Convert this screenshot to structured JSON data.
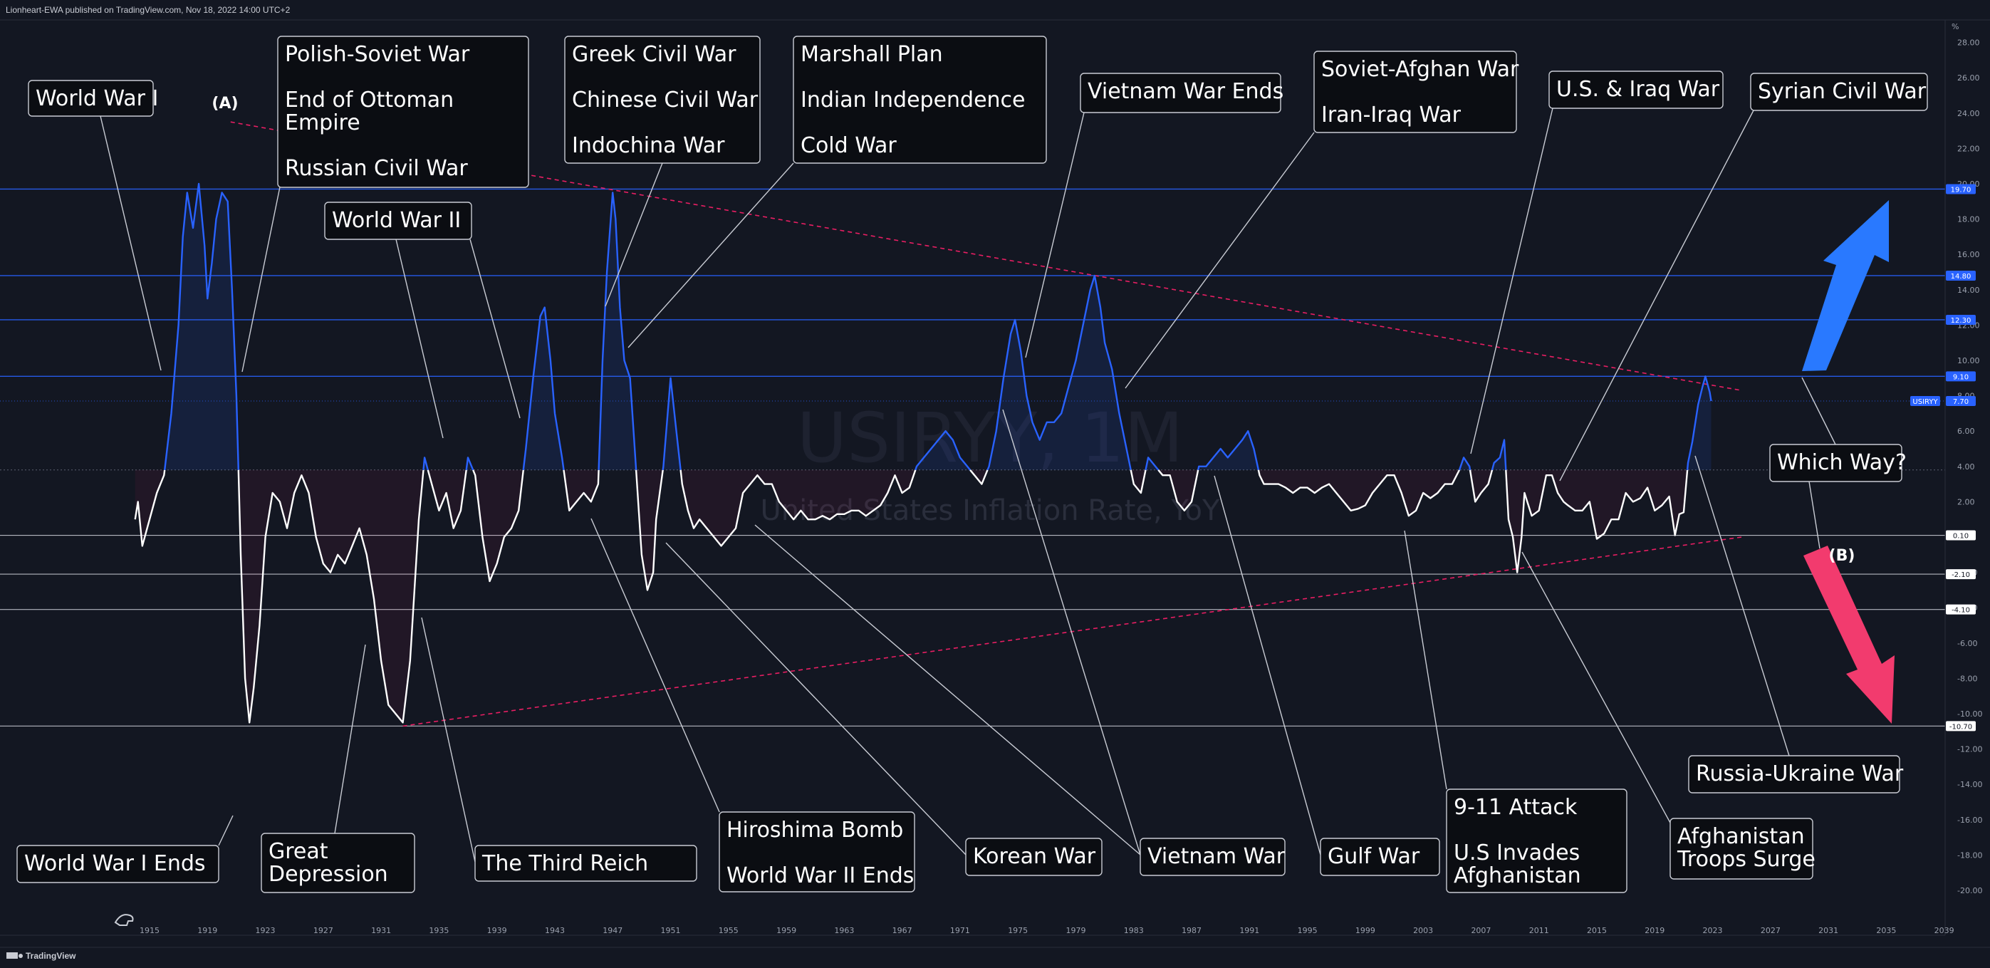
{
  "header": {
    "publisher": "Lionheart-EWA published on TradingView.com, Nov 18, 2022 14:00 UTC+2",
    "footer_brand": "TradingView"
  },
  "watermark": {
    "symbol": "USIRYY, 1M",
    "description": "United States Inflation Rate, YoY"
  },
  "colors": {
    "background": "#131722",
    "line_positive": "#2962ff",
    "line_white": "#ffffff",
    "trendline": "#e91e63",
    "arrow_up": "#2979ff",
    "arrow_down": "#f23b6e"
  },
  "chart_data": {
    "type": "line",
    "title": "USIRYY, 1M",
    "subtitle": "United States Inflation Rate, YoY",
    "y_unit": "%",
    "x_ticks": [
      "1915",
      "1919",
      "1923",
      "1927",
      "1931",
      "1935",
      "1939",
      "1943",
      "1947",
      "1951",
      "1955",
      "1959",
      "1963",
      "1967",
      "1971",
      "1975",
      "1979",
      "1983",
      "1987",
      "1991",
      "1995",
      "1999",
      "2003",
      "2007",
      "2011",
      "2015",
      "2019",
      "2023",
      "2027",
      "2031",
      "2035",
      "2039"
    ],
    "y_ticks": [
      "28.00",
      "26.00",
      "24.00",
      "22.00",
      "20.00",
      "18.00",
      "16.00",
      "14.00",
      "12.00",
      "10.00",
      "8.00",
      "6.00",
      "4.00",
      "2.00",
      "0.00",
      "-2.00",
      "-4.00",
      "-6.00",
      "-8.00",
      "-10.00",
      "-12.00",
      "-14.00",
      "-16.00",
      "-18.00",
      "-20.00"
    ],
    "xlim": [
      1912.7,
      2039.5
    ],
    "ylim": [
      -20,
      28
    ],
    "threshold": 3.8,
    "series": [
      {
        "values": [
          [
            1914.0,
            1.0
          ],
          [
            1914.2,
            2.0
          ],
          [
            1914.5,
            -0.5
          ],
          [
            1915.0,
            1.0
          ],
          [
            1915.5,
            2.5
          ],
          [
            1916.0,
            3.5
          ],
          [
            1916.5,
            7.0
          ],
          [
            1917.0,
            12.0
          ],
          [
            1917.3,
            17.0
          ],
          [
            1917.6,
            19.5
          ],
          [
            1918.0,
            17.5
          ],
          [
            1918.4,
            20.0
          ],
          [
            1918.8,
            16.5
          ],
          [
            1919.0,
            13.5
          ],
          [
            1919.3,
            15.5
          ],
          [
            1919.6,
            18.0
          ],
          [
            1920.0,
            19.5
          ],
          [
            1920.4,
            19.0
          ],
          [
            1920.7,
            14.0
          ],
          [
            1921.0,
            8.0
          ],
          [
            1921.3,
            -1.0
          ],
          [
            1921.6,
            -8.0
          ],
          [
            1921.9,
            -10.5
          ],
          [
            1922.2,
            -8.5
          ],
          [
            1922.6,
            -5.0
          ],
          [
            1923.0,
            0.0
          ],
          [
            1923.5,
            2.5
          ],
          [
            1924.0,
            2.0
          ],
          [
            1924.5,
            0.5
          ],
          [
            1925.0,
            2.5
          ],
          [
            1925.5,
            3.5
          ],
          [
            1926.0,
            2.5
          ],
          [
            1926.5,
            0.0
          ],
          [
            1927.0,
            -1.5
          ],
          [
            1927.5,
            -2.0
          ],
          [
            1928.0,
            -1.0
          ],
          [
            1928.5,
            -1.5
          ],
          [
            1929.0,
            -0.5
          ],
          [
            1929.5,
            0.5
          ],
          [
            1930.0,
            -1.0
          ],
          [
            1930.5,
            -3.5
          ],
          [
            1931.0,
            -7.0
          ],
          [
            1931.5,
            -9.5
          ],
          [
            1932.0,
            -10.0
          ],
          [
            1932.5,
            -10.5
          ],
          [
            1933.0,
            -7.0
          ],
          [
            1933.3,
            -3.0
          ],
          [
            1933.6,
            1.0
          ],
          [
            1934.0,
            4.5
          ],
          [
            1934.5,
            3.0
          ],
          [
            1935.0,
            1.5
          ],
          [
            1935.5,
            2.5
          ],
          [
            1936.0,
            0.5
          ],
          [
            1936.5,
            1.5
          ],
          [
            1937.0,
            4.5
          ],
          [
            1937.5,
            3.5
          ],
          [
            1938.0,
            0.0
          ],
          [
            1938.5,
            -2.5
          ],
          [
            1939.0,
            -1.5
          ],
          [
            1939.5,
            0.0
          ],
          [
            1940.0,
            0.5
          ],
          [
            1940.5,
            1.5
          ],
          [
            1941.0,
            5.0
          ],
          [
            1941.5,
            9.0
          ],
          [
            1942.0,
            12.5
          ],
          [
            1942.3,
            13.0
          ],
          [
            1942.7,
            10.0
          ],
          [
            1943.0,
            7.0
          ],
          [
            1943.5,
            4.5
          ],
          [
            1944.0,
            1.5
          ],
          [
            1944.5,
            2.0
          ],
          [
            1945.0,
            2.5
          ],
          [
            1945.5,
            2.0
          ],
          [
            1946.0,
            3.0
          ],
          [
            1946.3,
            10.0
          ],
          [
            1946.6,
            15.0
          ],
          [
            1947.0,
            19.5
          ],
          [
            1947.2,
            18.0
          ],
          [
            1947.5,
            13.0
          ],
          [
            1947.8,
            10.0
          ],
          [
            1948.2,
            9.0
          ],
          [
            1948.6,
            4.0
          ],
          [
            1949.0,
            -1.0
          ],
          [
            1949.4,
            -3.0
          ],
          [
            1949.8,
            -2.0
          ],
          [
            1950.0,
            1.0
          ],
          [
            1950.5,
            4.0
          ],
          [
            1951.0,
            9.0
          ],
          [
            1951.4,
            6.0
          ],
          [
            1951.8,
            3.0
          ],
          [
            1952.2,
            1.5
          ],
          [
            1952.6,
            0.5
          ],
          [
            1953.0,
            1.0
          ],
          [
            1953.5,
            0.5
          ],
          [
            1954.0,
            0.0
          ],
          [
            1954.5,
            -0.5
          ],
          [
            1955.0,
            0.0
          ],
          [
            1955.5,
            0.5
          ],
          [
            1956.0,
            2.5
          ],
          [
            1956.5,
            3.0
          ],
          [
            1957.0,
            3.5
          ],
          [
            1957.5,
            3.0
          ],
          [
            1958.0,
            3.0
          ],
          [
            1958.5,
            2.0
          ],
          [
            1959.0,
            1.5
          ],
          [
            1959.5,
            1.0
          ],
          [
            1960.0,
            1.5
          ],
          [
            1960.5,
            1.0
          ],
          [
            1961.0,
            1.0
          ],
          [
            1961.5,
            1.2
          ],
          [
            1962.0,
            1.0
          ],
          [
            1962.5,
            1.3
          ],
          [
            1963.0,
            1.3
          ],
          [
            1963.5,
            1.5
          ],
          [
            1964.0,
            1.5
          ],
          [
            1964.5,
            1.2
          ],
          [
            1965.0,
            1.5
          ],
          [
            1965.5,
            1.8
          ],
          [
            1966.0,
            2.5
          ],
          [
            1966.5,
            3.5
          ],
          [
            1967.0,
            2.5
          ],
          [
            1967.5,
            2.8
          ],
          [
            1968.0,
            4.0
          ],
          [
            1968.5,
            4.5
          ],
          [
            1969.0,
            5.0
          ],
          [
            1969.5,
            5.5
          ],
          [
            1970.0,
            6.0
          ],
          [
            1970.5,
            5.5
          ],
          [
            1971.0,
            4.5
          ],
          [
            1971.5,
            4.0
          ],
          [
            1972.0,
            3.5
          ],
          [
            1972.5,
            3.0
          ],
          [
            1973.0,
            4.0
          ],
          [
            1973.5,
            6.0
          ],
          [
            1974.0,
            9.0
          ],
          [
            1974.5,
            11.5
          ],
          [
            1974.8,
            12.3
          ],
          [
            1975.2,
            10.5
          ],
          [
            1975.6,
            8.0
          ],
          [
            1976.0,
            6.5
          ],
          [
            1976.5,
            5.5
          ],
          [
            1977.0,
            6.5
          ],
          [
            1977.5,
            6.5
          ],
          [
            1978.0,
            7.0
          ],
          [
            1978.5,
            8.5
          ],
          [
            1979.0,
            10.0
          ],
          [
            1979.5,
            12.0
          ],
          [
            1980.0,
            14.0
          ],
          [
            1980.3,
            14.8
          ],
          [
            1980.7,
            13.0
          ],
          [
            1981.0,
            11.0
          ],
          [
            1981.5,
            9.5
          ],
          [
            1982.0,
            7.0
          ],
          [
            1982.5,
            5.0
          ],
          [
            1983.0,
            3.0
          ],
          [
            1983.5,
            2.5
          ],
          [
            1984.0,
            4.5
          ],
          [
            1984.5,
            4.0
          ],
          [
            1985.0,
            3.5
          ],
          [
            1985.5,
            3.5
          ],
          [
            1986.0,
            2.0
          ],
          [
            1986.5,
            1.5
          ],
          [
            1987.0,
            2.0
          ],
          [
            1987.5,
            4.0
          ],
          [
            1988.0,
            4.0
          ],
          [
            1988.5,
            4.5
          ],
          [
            1989.0,
            5.0
          ],
          [
            1989.5,
            4.5
          ],
          [
            1990.0,
            5.0
          ],
          [
            1990.5,
            5.5
          ],
          [
            1990.9,
            6.0
          ],
          [
            1991.3,
            5.0
          ],
          [
            1991.7,
            3.5
          ],
          [
            1992.0,
            3.0
          ],
          [
            1992.5,
            3.0
          ],
          [
            1993.0,
            3.0
          ],
          [
            1993.5,
            2.8
          ],
          [
            1994.0,
            2.5
          ],
          [
            1994.5,
            2.8
          ],
          [
            1995.0,
            2.8
          ],
          [
            1995.5,
            2.5
          ],
          [
            1996.0,
            2.8
          ],
          [
            1996.5,
            3.0
          ],
          [
            1997.0,
            2.5
          ],
          [
            1997.5,
            2.0
          ],
          [
            1998.0,
            1.5
          ],
          [
            1998.5,
            1.6
          ],
          [
            1999.0,
            1.8
          ],
          [
            1999.5,
            2.5
          ],
          [
            2000.0,
            3.0
          ],
          [
            2000.5,
            3.5
          ],
          [
            2001.0,
            3.5
          ],
          [
            2001.5,
            2.5
          ],
          [
            2002.0,
            1.2
          ],
          [
            2002.5,
            1.5
          ],
          [
            2003.0,
            2.5
          ],
          [
            2003.5,
            2.2
          ],
          [
            2004.0,
            2.5
          ],
          [
            2004.5,
            3.0
          ],
          [
            2005.0,
            3.0
          ],
          [
            2005.5,
            3.8
          ],
          [
            2005.8,
            4.5
          ],
          [
            2006.2,
            4.0
          ],
          [
            2006.6,
            2.0
          ],
          [
            2007.0,
            2.5
          ],
          [
            2007.5,
            3.0
          ],
          [
            2007.9,
            4.2
          ],
          [
            2008.3,
            4.5
          ],
          [
            2008.6,
            5.5
          ],
          [
            2008.9,
            1.0
          ],
          [
            2009.2,
            0.0
          ],
          [
            2009.5,
            -2.0
          ],
          [
            2009.8,
            0.0
          ],
          [
            2010.0,
            2.5
          ],
          [
            2010.5,
            1.2
          ],
          [
            2011.0,
            1.5
          ],
          [
            2011.5,
            3.5
          ],
          [
            2011.9,
            3.5
          ],
          [
            2012.3,
            2.5
          ],
          [
            2012.7,
            2.0
          ],
          [
            2013.0,
            1.8
          ],
          [
            2013.5,
            1.5
          ],
          [
            2014.0,
            1.5
          ],
          [
            2014.5,
            2.0
          ],
          [
            2015.0,
            -0.1
          ],
          [
            2015.5,
            0.2
          ],
          [
            2016.0,
            1.0
          ],
          [
            2016.5,
            1.0
          ],
          [
            2017.0,
            2.5
          ],
          [
            2017.5,
            2.0
          ],
          [
            2018.0,
            2.2
          ],
          [
            2018.5,
            2.8
          ],
          [
            2019.0,
            1.5
          ],
          [
            2019.5,
            1.8
          ],
          [
            2020.0,
            2.3
          ],
          [
            2020.4,
            0.1
          ],
          [
            2020.7,
            1.3
          ],
          [
            2021.0,
            1.4
          ],
          [
            2021.3,
            4.2
          ],
          [
            2021.6,
            5.4
          ],
          [
            2022.0,
            7.5
          ],
          [
            2022.3,
            8.5
          ],
          [
            2022.5,
            9.1
          ],
          [
            2022.8,
            8.2
          ],
          [
            2022.9,
            7.7
          ]
        ]
      }
    ],
    "levels": [
      {
        "label": "19.70",
        "style": "blue"
      },
      {
        "label": "14.80",
        "style": "blue"
      },
      {
        "label": "12.30",
        "style": "blue"
      },
      {
        "label": "9.10",
        "style": "blue"
      },
      {
        "label": "0.10",
        "style": "white"
      },
      {
        "label": "-2.10",
        "style": "white"
      },
      {
        "label": "-4.10",
        "style": "white"
      },
      {
        "label": "-10.70",
        "style": "white"
      }
    ],
    "current_label": "USIRYY",
    "current_value": "7.70",
    "percent_unit_label": "%"
  },
  "wave_labels": {
    "a": "(A)",
    "b": "(B)"
  },
  "annotations": {
    "world_war_1": [
      "World War I"
    ],
    "polish_soviet": [
      "Polish-Soviet War",
      "",
      "End of Ottoman",
      "Empire",
      "",
      "Russian Civil War"
    ],
    "world_war_2": [
      "World War II"
    ],
    "greek_civil": [
      "Greek Civil War",
      "",
      "Chinese Civil War",
      "",
      "Indochina War"
    ],
    "marshall": [
      "Marshall Plan",
      "",
      "Indian Independence",
      "",
      "Cold War"
    ],
    "vietnam_ends": [
      "Vietnam War Ends"
    ],
    "soviet_afghan": [
      "Soviet-Afghan War",
      "",
      "Iran-Iraq War"
    ],
    "us_iraq": [
      "U.S. & Iraq War"
    ],
    "syrian": [
      "Syrian Civil War"
    ],
    "which_way": [
      "Which Way?"
    ],
    "russia_ukraine": [
      "Russia-Ukraine War"
    ],
    "ww1_ends": [
      "World War I Ends"
    ],
    "great_depression": [
      "Great",
      "Depression"
    ],
    "third_reich": [
      "The Third Reich"
    ],
    "hiroshima": [
      "Hiroshima Bomb",
      "",
      "World War II Ends"
    ],
    "korean": [
      "Korean War"
    ],
    "vietnam": [
      "Vietnam War"
    ],
    "gulf": [
      "Gulf War"
    ],
    "nine_eleven": [
      "9-11 Attack",
      "",
      "U.S Invades",
      "Afghanistan"
    ],
    "afghan_surge": [
      "Afghanistan",
      "Troops Surge"
    ]
  }
}
